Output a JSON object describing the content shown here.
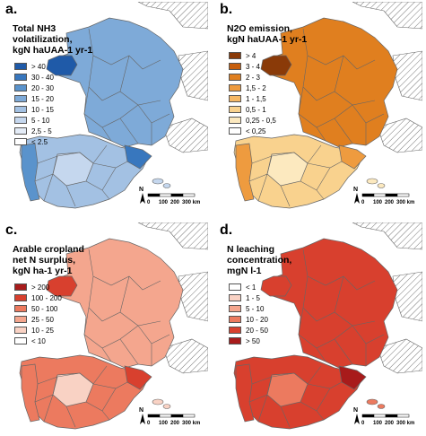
{
  "panels": [
    {
      "id": "a",
      "letter": "a.",
      "title": "Total NH3\nvolatilization,\nkgN haUAA-1 yr-1",
      "legend": [
        {
          "label": "> 40",
          "color": "#1f5aa8"
        },
        {
          "label": "30 - 40",
          "color": "#3877be"
        },
        {
          "label": "20 - 30",
          "color": "#5a93cc"
        },
        {
          "label": "15 - 20",
          "color": "#7eaad8"
        },
        {
          "label": "10 - 15",
          "color": "#a3c1e3"
        },
        {
          "label": "5 - 10",
          "color": "#c5d7ee"
        },
        {
          "label": "2,5 - 5",
          "color": "#e4ecf7"
        },
        {
          "label": "< 2.5",
          "color": "#ffffff"
        }
      ],
      "france_color": "#7eaad8",
      "brittany_color": "#1f5aa8",
      "spain_color": "#a3c1e3",
      "portugal_color": "#5a93cc",
      "catalonia_color": "#3877be",
      "inland_color": "#c5d7ee"
    },
    {
      "id": "b",
      "letter": "b.",
      "title": "N2O emission,\nkgN haUAA-1 yr-1",
      "legend": [
        {
          "label": "> 4",
          "color": "#8a3a08"
        },
        {
          "label": "3 - 4",
          "color": "#c75e0c"
        },
        {
          "label": "2 - 3",
          "color": "#e07f1f"
        },
        {
          "label": "1,5 - 2",
          "color": "#ee9b3f"
        },
        {
          "label": "1 - 1,5",
          "color": "#f5b866"
        },
        {
          "label": "0,5 - 1",
          "color": "#f9d28e"
        },
        {
          "label": "0,25 - 0,5",
          "color": "#fce9bf"
        },
        {
          "label": "< 0,25",
          "color": "#ffffff"
        }
      ],
      "france_color": "#e07f1f",
      "brittany_color": "#8a3a08",
      "spain_color": "#f9d28e",
      "portugal_color": "#ee9b3f",
      "catalonia_color": "#ee9b3f",
      "inland_color": "#fce9bf"
    },
    {
      "id": "c",
      "letter": "c.",
      "title": "Arable cropland\nnet N surplus,\nkgN ha-1 yr-1",
      "legend": [
        {
          "label": "> 200",
          "color": "#a81b1b"
        },
        {
          "label": "100 - 200",
          "color": "#d8402e"
        },
        {
          "label": "50 - 100",
          "color": "#ec7a5f"
        },
        {
          "label": "25 - 50",
          "color": "#f4a68e"
        },
        {
          "label": "10 - 25",
          "color": "#f9d2c4"
        },
        {
          "label": "< 10",
          "color": "#ffffff"
        }
      ],
      "france_color": "#f4a68e",
      "brittany_color": "#d8402e",
      "spain_color": "#ec7a5f",
      "portugal_color": "#ec7a5f",
      "catalonia_color": "#d8402e",
      "inland_color": "#f9d2c4"
    },
    {
      "id": "d",
      "letter": "d.",
      "title": "N leaching\nconcentration,\nmgN l-1",
      "legend": [
        {
          "label": "< 1",
          "color": "#ffffff"
        },
        {
          "label": "1 - 5",
          "color": "#f9d2c4"
        },
        {
          "label": "5 - 10",
          "color": "#f4a68e"
        },
        {
          "label": "10 - 20",
          "color": "#ec7a5f"
        },
        {
          "label": "20 - 50",
          "color": "#d8402e"
        },
        {
          "label": "> 50",
          "color": "#a81b1b"
        }
      ],
      "france_color": "#d8402e",
      "brittany_color": "#d8402e",
      "spain_color": "#d8402e",
      "portugal_color": "#d8402e",
      "catalonia_color": "#a81b1b",
      "inland_color": "#ec7a5f"
    }
  ],
  "north_label": "N",
  "scale_labels": [
    "0",
    "100",
    "200",
    "300 km"
  ]
}
